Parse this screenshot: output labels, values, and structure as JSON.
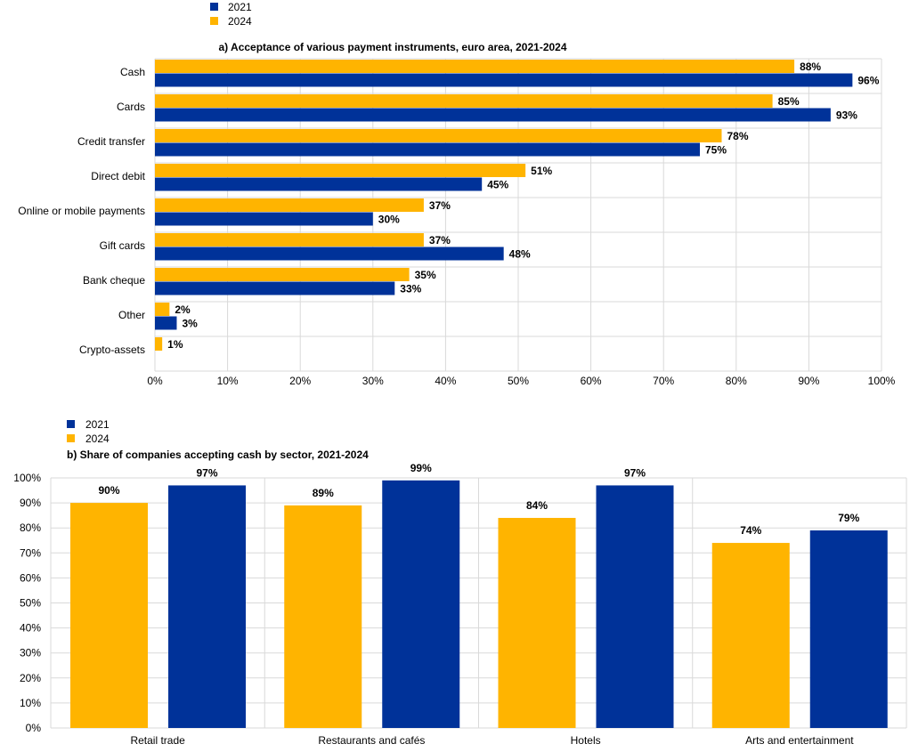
{
  "colors": {
    "y2021": "#003299",
    "y2024": "#FFB400",
    "grid": "#d9d9d9"
  },
  "chart_data": [
    {
      "type": "bar",
      "orientation": "horizontal",
      "title": "a) Acceptance of various payment instruments, euro area, 2021-2024",
      "legend": [
        "2021",
        "2024"
      ],
      "legend_placement": "top-left",
      "categories": [
        "Cash",
        "Cards",
        "Credit transfer",
        "Direct debit",
        "Online or mobile payments",
        "Gift cards",
        "Bank cheque",
        "Other",
        "Crypto-assets"
      ],
      "series": [
        {
          "name": "2024",
          "values": [
            88,
            85,
            78,
            51,
            37,
            37,
            35,
            2,
            1
          ],
          "labels": [
            "88%",
            "85%",
            "78%",
            "51%",
            "37%",
            "37%",
            "35%",
            "2%",
            "1%"
          ]
        },
        {
          "name": "2021",
          "values": [
            96,
            93,
            75,
            45,
            30,
            48,
            33,
            3,
            null
          ],
          "labels": [
            "96%",
            "93%",
            "75%",
            "45%",
            "30%",
            "48%",
            "33%",
            "3%",
            ""
          ]
        }
      ],
      "xlim": [
        0,
        100
      ],
      "xticks": [
        "0%",
        "10%",
        "20%",
        "30%",
        "40%",
        "50%",
        "60%",
        "70%",
        "80%",
        "90%",
        "100%"
      ],
      "grid": true
    },
    {
      "type": "bar",
      "orientation": "vertical",
      "title": "b) Share of companies accepting cash by sector, 2021-2024",
      "legend": [
        "2021",
        "2024"
      ],
      "legend_placement": "top-left",
      "categories": [
        "Retail trade",
        "Restaurants and cafés",
        "Hotels",
        "Arts and entertainment"
      ],
      "series": [
        {
          "name": "2024",
          "values": [
            90,
            89,
            84,
            74
          ],
          "labels": [
            "90%",
            "89%",
            "84%",
            "74%"
          ]
        },
        {
          "name": "2021",
          "values": [
            97,
            99,
            97,
            79
          ],
          "labels": [
            "97%",
            "99%",
            "97%",
            "79%"
          ]
        }
      ],
      "ylim": [
        0,
        100
      ],
      "yticks": [
        "0%",
        "10%",
        "20%",
        "30%",
        "40%",
        "50%",
        "60%",
        "70%",
        "80%",
        "90%",
        "100%"
      ],
      "grid": true
    }
  ]
}
